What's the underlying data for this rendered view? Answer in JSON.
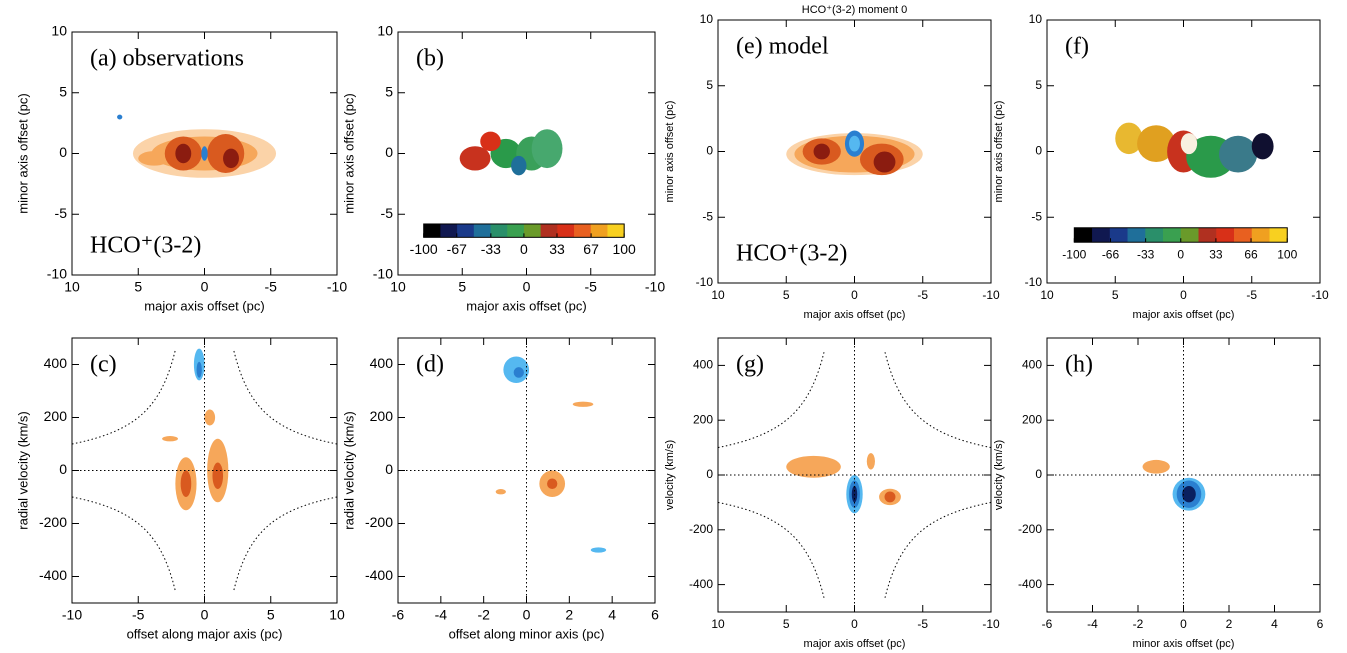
{
  "chart_data": [
    {
      "type": "contour",
      "label": "(a) observations",
      "annotation": "HCO⁺(3-2)",
      "xlabel": "major axis offset (pc)",
      "ylabel": "minor axis offset (pc)",
      "xlim": [
        10,
        -10
      ],
      "ylim": [
        -10,
        10
      ],
      "xticks": [
        10,
        5,
        0,
        -5,
        -10
      ],
      "yticks": [
        -10,
        -5,
        0,
        5,
        10
      ]
    },
    {
      "type": "image",
      "label": "(b)",
      "xlabel": "major axis offset (pc)",
      "ylabel": "minor axis offset (pc)",
      "xlim": [
        10,
        -10
      ],
      "ylim": [
        -10,
        10
      ],
      "xticks": [
        10,
        5,
        0,
        -5,
        -10
      ],
      "yticks": [
        -10,
        -5,
        0,
        5,
        10
      ],
      "colorbar": {
        "lim": [
          -100,
          100
        ],
        "ticks": [
          -100,
          -67,
          -33,
          0,
          33,
          67,
          100
        ],
        "colors": [
          "#000000",
          "#101850",
          "#1a3a8a",
          "#1f6f9a",
          "#2a8f6a",
          "#3aa050",
          "#6a9a2a",
          "#b03020",
          "#d83018",
          "#e86020",
          "#f0a020",
          "#f8d020"
        ]
      }
    },
    {
      "type": "contour",
      "label": "(e)  model",
      "title": "HCO⁺(3-2) moment 0",
      "annotation": "HCO⁺(3-2)",
      "xlabel": "major axis offset (pc)",
      "ylabel": "minor axis offset (pc)",
      "xlim": [
        10,
        -10
      ],
      "ylim": [
        -10,
        10
      ],
      "xticks": [
        10,
        5,
        0,
        -5,
        -10
      ],
      "yticks": [
        -10,
        -5,
        0,
        5,
        10
      ]
    },
    {
      "type": "image",
      "label": "(f)",
      "xlabel": "major axis offset (pc)",
      "ylabel": "minor axis offset (pc)",
      "xlim": [
        10,
        -10
      ],
      "ylim": [
        -10,
        10
      ],
      "xticks": [
        10,
        5,
        0,
        -5,
        -10
      ],
      "yticks": [
        -10,
        -5,
        0,
        5,
        10
      ],
      "colorbar": {
        "lim": [
          -100,
          100
        ],
        "ticks": [
          -100,
          -66,
          -33,
          0,
          33,
          66,
          100
        ],
        "colors": [
          "#000000",
          "#101850",
          "#1a3a8a",
          "#1f6f9a",
          "#2a8f6a",
          "#3aa050",
          "#6a9a2a",
          "#b03020",
          "#d83018",
          "#e86020",
          "#f0a020",
          "#f8d020"
        ]
      }
    },
    {
      "type": "contour",
      "label": "(c)",
      "xlabel": "offset along major axis (pc)",
      "ylabel": "radial velocity (km/s)",
      "xlim": [
        -10,
        10
      ],
      "ylim": [
        -500,
        500
      ],
      "xticks": [
        -10,
        -5,
        0,
        5,
        10
      ],
      "yticks": [
        -400,
        -200,
        0,
        200,
        400
      ]
    },
    {
      "type": "contour",
      "label": "(d)",
      "xlabel": "offset along minor axis (pc)",
      "ylabel": "radial velocity (km/s)",
      "xlim": [
        -6,
        6
      ],
      "ylim": [
        -500,
        500
      ],
      "xticks": [
        -6,
        -4,
        -2,
        0,
        2,
        4,
        6
      ],
      "yticks": [
        -400,
        -200,
        0,
        200,
        400
      ]
    },
    {
      "type": "contour",
      "label": "(g)",
      "xlabel": "major axis offset (pc)",
      "ylabel": "velocity (km/s)",
      "xlim": [
        10,
        -10
      ],
      "ylim": [
        -500,
        500
      ],
      "xticks": [
        10,
        5,
        0,
        -5,
        -10
      ],
      "yticks": [
        -400,
        -200,
        0,
        200,
        400
      ]
    },
    {
      "type": "contour",
      "label": "(h)",
      "xlabel": "minor axis offset (pc)",
      "ylabel": "velocity (km/s)",
      "xlim": [
        -6,
        6
      ],
      "ylim": [
        -500,
        500
      ],
      "xticks": [
        -6,
        -4,
        -2,
        0,
        2,
        4,
        6
      ],
      "yticks": [
        -400,
        -200,
        0,
        200,
        400
      ]
    }
  ]
}
